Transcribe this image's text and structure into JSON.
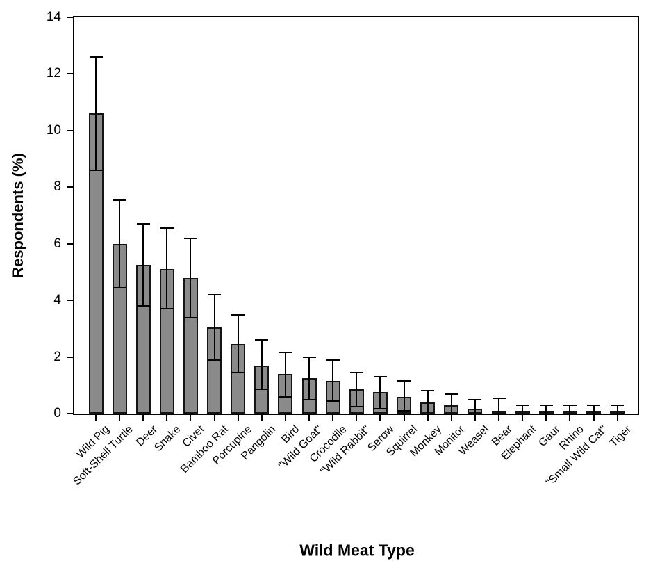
{
  "figure": {
    "background": "#ffffff",
    "frame_color": "#000000"
  },
  "chart_data": {
    "type": "bar",
    "title": "",
    "xlabel": "Wild Meat Type",
    "ylabel": "Respondents (%)",
    "ylim": [
      0,
      14
    ],
    "yticks": [
      0,
      2,
      4,
      6,
      8,
      10,
      12,
      14
    ],
    "grid": false,
    "legend": false,
    "bar_color": "#8a8a8a",
    "bar_edge_color": "#141414",
    "error_bar_color": "#000000",
    "categories": [
      "Wild Pig",
      "Soft-Shell Turtle",
      "Deer",
      "Snake",
      "Civet",
      "Bamboo Rat",
      "Porcupine",
      "Pangolin",
      "Bird",
      "\"Wild Goat\"",
      "Crocodile",
      "\"Wild Rabbit\"",
      "Serow",
      "Squirrel",
      "Monkey",
      "Monitor",
      "Weasel",
      "Bear",
      "Elephant",
      "Gaur",
      "Rhino",
      "\"Small Wild Cat\"",
      "Tiger"
    ],
    "values": [
      10.6,
      6.0,
      5.25,
      5.1,
      4.8,
      3.05,
      2.45,
      1.7,
      1.4,
      1.25,
      1.15,
      0.85,
      0.75,
      0.6,
      0.4,
      0.3,
      0.17,
      0.1,
      0.1,
      0.1,
      0.1,
      0.1,
      0.1
    ],
    "error_low": [
      8.6,
      4.45,
      3.8,
      3.7,
      3.4,
      1.9,
      1.45,
      0.85,
      0.6,
      0.5,
      0.45,
      0.25,
      0.17,
      0.1,
      0,
      0,
      0,
      0,
      0,
      0,
      0,
      0,
      0
    ],
    "error_high": [
      12.6,
      7.55,
      6.7,
      6.55,
      6.2,
      4.2,
      3.5,
      2.6,
      2.15,
      2.0,
      1.9,
      1.45,
      1.3,
      1.15,
      0.8,
      0.7,
      0.5,
      0.55,
      0.3,
      0.3,
      0.3,
      0.3,
      0.3
    ]
  }
}
